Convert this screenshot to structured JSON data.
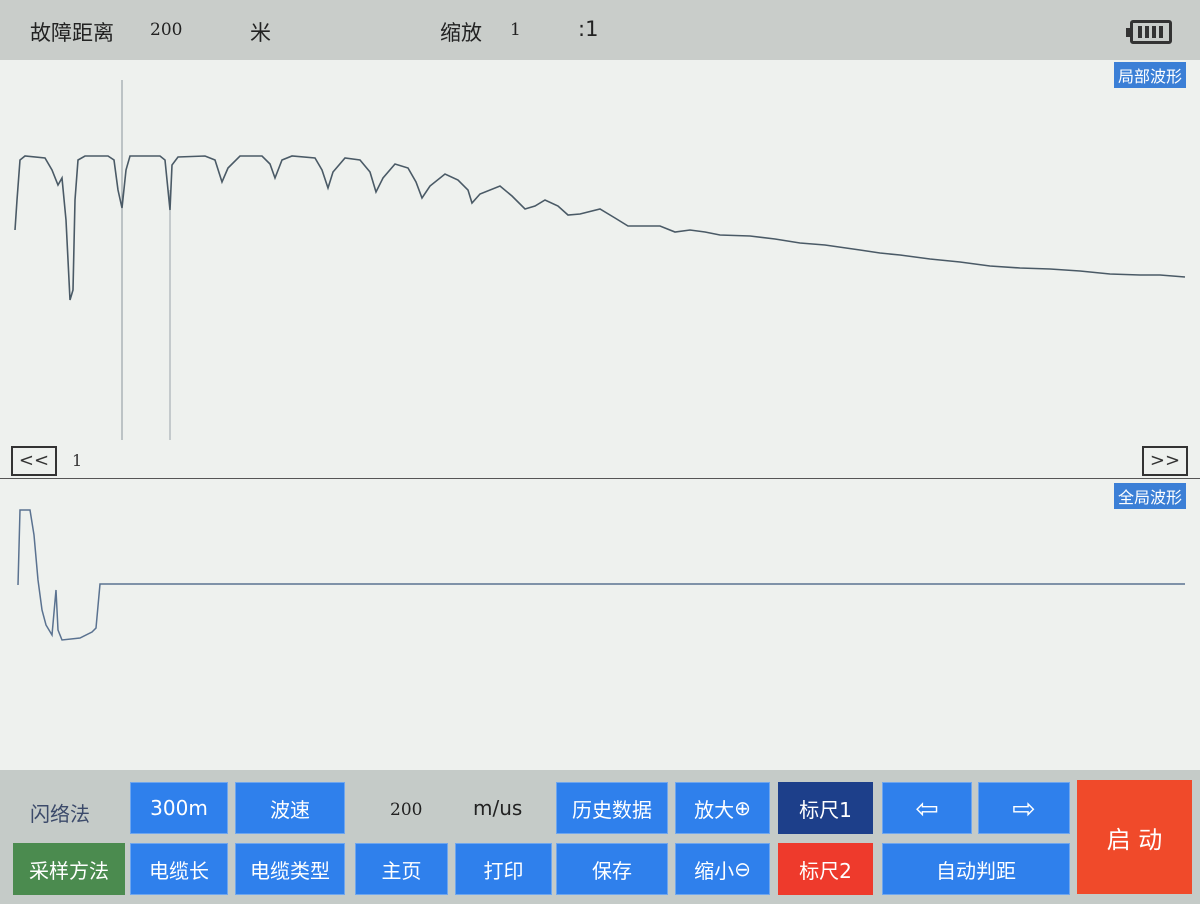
{
  "header": {
    "fault_distance_label": "故障距离",
    "fault_distance_value": "200",
    "unit": "米",
    "zoom_label": "缩放",
    "zoom_value": "1",
    "zoom_ratio": ":1",
    "battery": "battery-icon"
  },
  "upper_plot": {
    "title": "局部波形",
    "prev": "<<",
    "next": ">>",
    "page": "1"
  },
  "lower_plot": {
    "title": "全局波形"
  },
  "panel": {
    "method": "闪络法",
    "range": "300m",
    "wave_speed": "波速",
    "speed_value": "200",
    "speed_unit": "m/us",
    "history": "历史数据",
    "zoom_in": "放大",
    "ruler1": "标尺1",
    "left": "⇦",
    "right": "⇨",
    "start": "启 动",
    "sampling": "采样方法",
    "cable_length": "电缆长",
    "cable_type": "电缆类型",
    "home": "主页",
    "print": "打印",
    "save": "保存",
    "zoom_out": "缩小",
    "ruler2": "标尺2",
    "auto": "自动判距"
  },
  "colors": {
    "button": "#2f80ec",
    "ruler1": "#1d3f8a",
    "ruler2": "#ee3a2c",
    "start": "#f04a2a",
    "sampling": "#4b8b4f",
    "trace": "#4a5a66"
  }
}
